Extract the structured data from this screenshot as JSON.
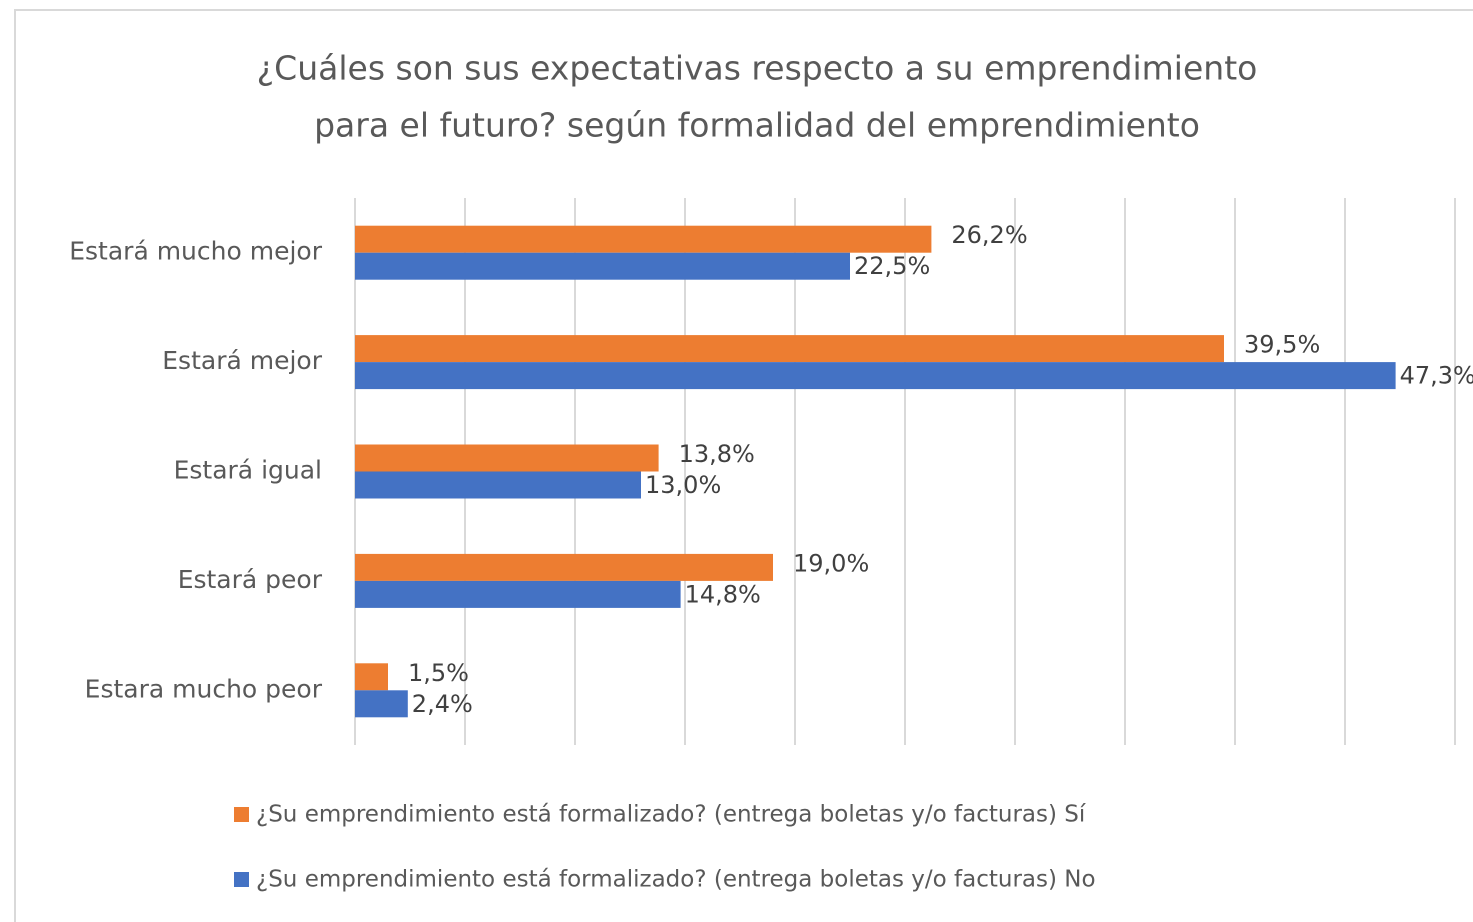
{
  "chart_data": {
    "type": "barh",
    "title": [
      "¿Cuáles son sus expectativas respecto a su emprendimiento",
      "para el futuro?  según formalidad del emprendimiento"
    ],
    "categories": [
      "Estará mucho mejor",
      "Estará mejor",
      "Estará igual",
      "Estará peor",
      "Estara mucho peor"
    ],
    "series": [
      {
        "name": "¿Su emprendimiento está formalizado?  (entrega boletas y/o facturas) Sí",
        "color": "#ed7d31",
        "values": [
          26.2,
          39.5,
          13.8,
          19.0,
          1.5
        ],
        "value_labels": [
          "26,2%",
          "39,5%",
          "13,8%",
          "19,0%",
          "1,5%"
        ]
      },
      {
        "name": "¿Su emprendimiento está formalizado?  (entrega boletas y/o facturas) No",
        "color": "#4472c4",
        "values": [
          22.5,
          47.3,
          13.0,
          14.8,
          2.4
        ],
        "value_labels": [
          "22,5%",
          "47,3%",
          "13,0%",
          "14,8%",
          "2,4%"
        ]
      }
    ],
    "xlim": [
      0,
      50
    ],
    "xticks": [
      0,
      5,
      10,
      15,
      20,
      25,
      30,
      35,
      40,
      45,
      50
    ],
    "grid": true
  }
}
